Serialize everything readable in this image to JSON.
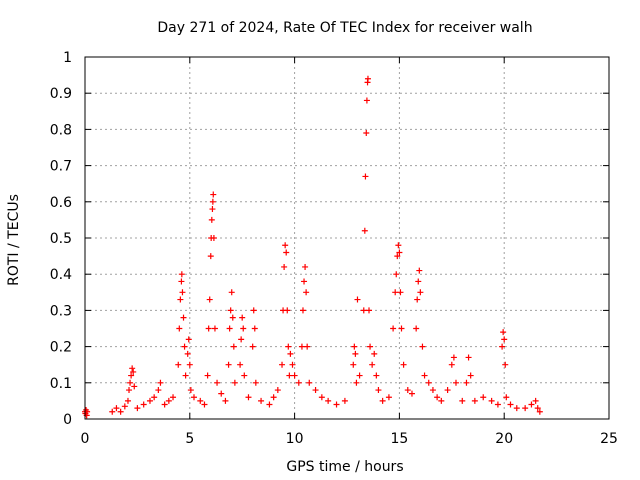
{
  "chart_data": {
    "type": "scatter",
    "title": "Day 271 of 2024, Rate Of TEC Index for receiver walh",
    "xlabel": "GPS time / hours",
    "ylabel": "ROTI / TECUs",
    "xlim": [
      0,
      25
    ],
    "ylim": [
      0,
      1
    ],
    "x_ticks": [
      "0",
      "5",
      "10",
      "15",
      "20",
      "25"
    ],
    "y_ticks": [
      "0",
      "0.1",
      "0.2",
      "0.3",
      "0.4",
      "0.5",
      "0.6",
      "0.7",
      "0.8",
      "0.9",
      "1"
    ],
    "grid": true,
    "marker": "plus",
    "series_color": "#ff0000",
    "series": [
      {
        "points": [
          [
            0.0,
            0.02
          ],
          [
            0.02,
            0.015
          ],
          [
            0.05,
            0.025
          ],
          [
            0.08,
            0.01
          ],
          [
            0.1,
            0.02
          ],
          [
            1.3,
            0.02
          ],
          [
            1.5,
            0.03
          ],
          [
            1.7,
            0.02
          ],
          [
            1.9,
            0.035
          ],
          [
            2.05,
            0.05
          ],
          [
            2.1,
            0.08
          ],
          [
            2.15,
            0.1
          ],
          [
            2.2,
            0.12
          ],
          [
            2.25,
            0.14
          ],
          [
            2.3,
            0.13
          ],
          [
            2.35,
            0.09
          ],
          [
            2.5,
            0.03
          ],
          [
            2.8,
            0.04
          ],
          [
            3.1,
            0.05
          ],
          [
            3.3,
            0.06
          ],
          [
            3.5,
            0.08
          ],
          [
            3.6,
            0.1
          ],
          [
            3.8,
            0.04
          ],
          [
            4.0,
            0.05
          ],
          [
            4.2,
            0.06
          ],
          [
            4.45,
            0.15
          ],
          [
            4.5,
            0.25
          ],
          [
            4.55,
            0.33
          ],
          [
            4.6,
            0.38
          ],
          [
            4.62,
            0.4
          ],
          [
            4.65,
            0.35
          ],
          [
            4.7,
            0.28
          ],
          [
            4.75,
            0.2
          ],
          [
            4.8,
            0.12
          ],
          [
            4.9,
            0.18
          ],
          [
            4.95,
            0.22
          ],
          [
            5.0,
            0.15
          ],
          [
            5.05,
            0.08
          ],
          [
            5.2,
            0.06
          ],
          [
            5.5,
            0.05
          ],
          [
            5.7,
            0.04
          ],
          [
            5.85,
            0.12
          ],
          [
            5.9,
            0.25
          ],
          [
            5.95,
            0.33
          ],
          [
            6.0,
            0.45
          ],
          [
            6.02,
            0.5
          ],
          [
            6.05,
            0.55
          ],
          [
            6.08,
            0.58
          ],
          [
            6.1,
            0.6
          ],
          [
            6.12,
            0.62
          ],
          [
            6.15,
            0.5
          ],
          [
            6.2,
            0.25
          ],
          [
            6.3,
            0.1
          ],
          [
            6.5,
            0.07
          ],
          [
            6.7,
            0.05
          ],
          [
            6.85,
            0.15
          ],
          [
            6.9,
            0.25
          ],
          [
            6.95,
            0.3
          ],
          [
            7.0,
            0.35
          ],
          [
            7.05,
            0.28
          ],
          [
            7.1,
            0.2
          ],
          [
            7.15,
            0.1
          ],
          [
            7.4,
            0.15
          ],
          [
            7.45,
            0.22
          ],
          [
            7.5,
            0.28
          ],
          [
            7.55,
            0.25
          ],
          [
            7.6,
            0.12
          ],
          [
            7.8,
            0.06
          ],
          [
            8.0,
            0.2
          ],
          [
            8.05,
            0.3
          ],
          [
            8.1,
            0.25
          ],
          [
            8.15,
            0.1
          ],
          [
            8.4,
            0.05
          ],
          [
            8.8,
            0.04
          ],
          [
            9.0,
            0.06
          ],
          [
            9.2,
            0.08
          ],
          [
            9.4,
            0.15
          ],
          [
            9.45,
            0.3
          ],
          [
            9.5,
            0.42
          ],
          [
            9.55,
            0.48
          ],
          [
            9.6,
            0.46
          ],
          [
            9.65,
            0.3
          ],
          [
            9.7,
            0.2
          ],
          [
            9.75,
            0.12
          ],
          [
            9.8,
            0.18
          ],
          [
            9.9,
            0.15
          ],
          [
            10.0,
            0.12
          ],
          [
            10.2,
            0.1
          ],
          [
            10.35,
            0.2
          ],
          [
            10.4,
            0.3
          ],
          [
            10.45,
            0.38
          ],
          [
            10.5,
            0.42
          ],
          [
            10.55,
            0.35
          ],
          [
            10.6,
            0.2
          ],
          [
            10.7,
            0.1
          ],
          [
            11.0,
            0.08
          ],
          [
            11.3,
            0.06
          ],
          [
            11.6,
            0.05
          ],
          [
            12.0,
            0.04
          ],
          [
            12.4,
            0.05
          ],
          [
            12.8,
            0.15
          ],
          [
            12.85,
            0.2
          ],
          [
            12.9,
            0.18
          ],
          [
            12.95,
            0.1
          ],
          [
            13.0,
            0.33
          ],
          [
            13.1,
            0.12
          ],
          [
            13.3,
            0.3
          ],
          [
            13.35,
            0.52
          ],
          [
            13.38,
            0.67
          ],
          [
            13.42,
            0.79
          ],
          [
            13.45,
            0.88
          ],
          [
            13.48,
            0.93
          ],
          [
            13.5,
            0.94
          ],
          [
            13.55,
            0.3
          ],
          [
            13.6,
            0.2
          ],
          [
            13.7,
            0.15
          ],
          [
            13.8,
            0.18
          ],
          [
            13.9,
            0.12
          ],
          [
            14.0,
            0.08
          ],
          [
            14.2,
            0.05
          ],
          [
            14.5,
            0.06
          ],
          [
            14.7,
            0.25
          ],
          [
            14.8,
            0.35
          ],
          [
            14.85,
            0.4
          ],
          [
            14.9,
            0.45
          ],
          [
            14.95,
            0.48
          ],
          [
            15.0,
            0.46
          ],
          [
            15.05,
            0.35
          ],
          [
            15.1,
            0.25
          ],
          [
            15.2,
            0.15
          ],
          [
            15.4,
            0.08
          ],
          [
            15.6,
            0.07
          ],
          [
            15.8,
            0.25
          ],
          [
            15.85,
            0.33
          ],
          [
            15.9,
            0.38
          ],
          [
            15.95,
            0.41
          ],
          [
            16.0,
            0.35
          ],
          [
            16.1,
            0.2
          ],
          [
            16.2,
            0.12
          ],
          [
            16.4,
            0.1
          ],
          [
            16.6,
            0.08
          ],
          [
            16.8,
            0.06
          ],
          [
            17.0,
            0.05
          ],
          [
            17.3,
            0.08
          ],
          [
            17.5,
            0.15
          ],
          [
            17.6,
            0.17
          ],
          [
            17.7,
            0.1
          ],
          [
            18.0,
            0.05
          ],
          [
            18.2,
            0.1
          ],
          [
            18.3,
            0.17
          ],
          [
            18.4,
            0.12
          ],
          [
            18.6,
            0.05
          ],
          [
            19.0,
            0.06
          ],
          [
            19.4,
            0.05
          ],
          [
            19.7,
            0.04
          ],
          [
            19.9,
            0.2
          ],
          [
            19.95,
            0.24
          ],
          [
            20.0,
            0.22
          ],
          [
            20.05,
            0.15
          ],
          [
            20.1,
            0.06
          ],
          [
            20.3,
            0.04
          ],
          [
            20.6,
            0.03
          ],
          [
            21.0,
            0.03
          ],
          [
            21.3,
            0.04
          ],
          [
            21.5,
            0.05
          ],
          [
            21.6,
            0.03
          ],
          [
            21.7,
            0.02
          ]
        ]
      }
    ]
  }
}
